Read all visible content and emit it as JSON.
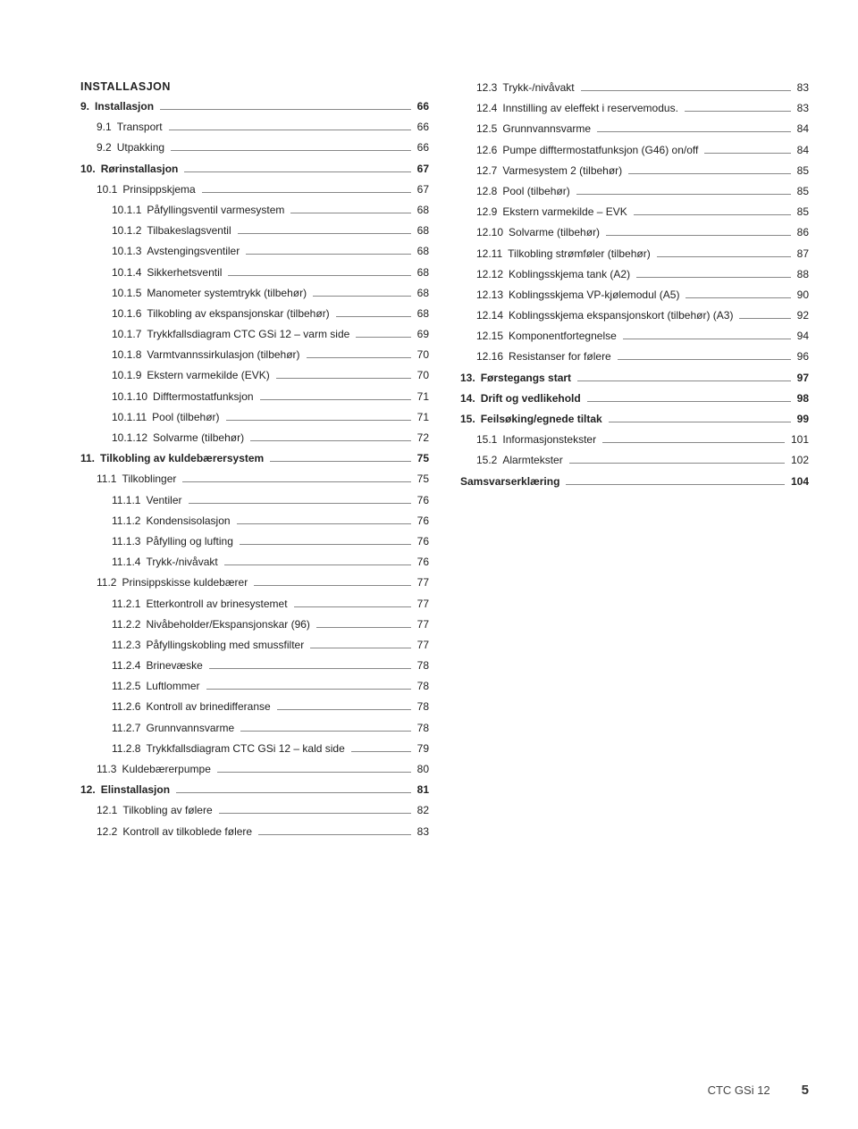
{
  "footer": {
    "doc": "CTC GSi 12",
    "page": "5"
  },
  "left": [
    {
      "type": "heading",
      "label": "INSTALLASJON"
    },
    {
      "num": "9.",
      "label": "Installasjon",
      "page": "66",
      "bold": true
    },
    {
      "num": "9.1",
      "label": "Transport",
      "page": "66",
      "indent": 1
    },
    {
      "num": "9.2",
      "label": "Utpakking",
      "page": "66",
      "indent": 1
    },
    {
      "num": "10.",
      "label": "Rørinstallasjon",
      "page": "67",
      "bold": true
    },
    {
      "num": "10.1",
      "label": "Prinsippskjema",
      "page": "67",
      "indent": 1
    },
    {
      "num": "10.1.1",
      "label": "Påfyllingsventil varmesystem",
      "page": "68",
      "indent": 2
    },
    {
      "num": "10.1.2",
      "label": "Tilbakeslagsventil",
      "page": "68",
      "indent": 2
    },
    {
      "num": "10.1.3",
      "label": "Avstengingsventiler",
      "page": "68",
      "indent": 2
    },
    {
      "num": "10.1.4",
      "label": "Sikkerhetsventil",
      "page": "68",
      "indent": 2
    },
    {
      "num": "10.1.5",
      "label": "Manometer systemtrykk  (tilbehør)",
      "page": "68",
      "indent": 2
    },
    {
      "num": "10.1.6",
      "label": "Tilkobling av ekspansjonskar (tilbehør)",
      "page": "68",
      "indent": 2
    },
    {
      "num": "10.1.7",
      "label": "Trykkfallsdiagram CTC GSi 12 – varm side",
      "page": "69",
      "indent": 2
    },
    {
      "num": "10.1.8",
      "label": "Varmtvannssirkulasjon (tilbehør)",
      "page": "70",
      "indent": 2
    },
    {
      "num": "10.1.9",
      "label": "Ekstern varmekilde (EVK)",
      "page": "70",
      "indent": 2
    },
    {
      "num": "10.1.10",
      "label": "Difftermostatfunksjon",
      "page": "71",
      "indent": 2
    },
    {
      "num": "10.1.11",
      "label": "Pool (tilbehør)",
      "page": "71",
      "indent": 2
    },
    {
      "num": "10.1.12",
      "label": "Solvarme (tilbehør)",
      "page": "72",
      "indent": 2
    },
    {
      "num": "11.",
      "label": "Tilkobling av kuldebærersystem",
      "page": "75",
      "bold": true
    },
    {
      "num": "11.1",
      "label": "Tilkoblinger",
      "page": "75",
      "indent": 1
    },
    {
      "num": "11.1.1",
      "label": "Ventiler",
      "page": "76",
      "indent": 2
    },
    {
      "num": "11.1.2",
      "label": "Kondensisolasjon",
      "page": "76",
      "indent": 2
    },
    {
      "num": "11.1.3",
      "label": "Påfylling og lufting",
      "page": "76",
      "indent": 2
    },
    {
      "num": "11.1.4",
      "label": "Trykk-/nivåvakt",
      "page": "76",
      "indent": 2
    },
    {
      "num": "11.2",
      "label": "Prinsippskisse kuldebærer",
      "page": "77",
      "indent": 1
    },
    {
      "num": "11.2.1",
      "label": "Etterkontroll av brinesystemet",
      "page": "77",
      "indent": 2
    },
    {
      "num": "11.2.2",
      "label": "Nivåbeholder/Ekspansjonskar (96)",
      "page": "77",
      "indent": 2
    },
    {
      "num": "11.2.3",
      "label": "Påfyllingskobling med smussfilter",
      "page": "77",
      "indent": 2
    },
    {
      "num": "11.2.4",
      "label": "Brinevæske",
      "page": "78",
      "indent": 2
    },
    {
      "num": "11.2.5",
      "label": "Luftlommer",
      "page": "78",
      "indent": 2
    },
    {
      "num": "11.2.6",
      "label": "Kontroll av brinedifferanse",
      "page": "78",
      "indent": 2
    },
    {
      "num": "11.2.7",
      "label": "Grunnvannsvarme",
      "page": "78",
      "indent": 2
    },
    {
      "num": "11.2.8",
      "label": "Trykkfallsdiagram CTC GSi 12 – kald side",
      "page": "79",
      "indent": 2
    },
    {
      "num": "11.3",
      "label": "Kuldebærerpumpe",
      "page": "80",
      "indent": 1
    },
    {
      "num": "12.",
      "label": "Elinstallasjon",
      "page": "81",
      "bold": true
    },
    {
      "num": "12.1",
      "label": "Tilkobling av følere",
      "page": "82",
      "indent": 1
    },
    {
      "num": "12.2",
      "label": "Kontroll av tilkoblede følere",
      "page": "83",
      "indent": 1
    }
  ],
  "right": [
    {
      "num": "12.3",
      "label": "Trykk-/nivåvakt",
      "page": "83",
      "indent": 1
    },
    {
      "num": "12.4",
      "label": "Innstilling av eleffekt i reservemodus.",
      "page": "83",
      "indent": 1
    },
    {
      "num": "12.5",
      "label": "Grunnvannsvarme",
      "page": "84",
      "indent": 1
    },
    {
      "num": "12.6",
      "label": "Pumpe difftermostatfunksjon (G46) on/off",
      "page": "84",
      "indent": 1
    },
    {
      "num": "12.7",
      "label": "Varmesystem 2 (tilbehør)",
      "page": "85",
      "indent": 1
    },
    {
      "num": "12.8",
      "label": "Pool (tilbehør)",
      "page": "85",
      "indent": 1
    },
    {
      "num": "12.9",
      "label": "Ekstern varmekilde – EVK",
      "page": "85",
      "indent": 1
    },
    {
      "num": "12.10",
      "label": "Solvarme (tilbehør)",
      "page": "86",
      "indent": 1
    },
    {
      "num": "12.11",
      "label": "Tilkobling strømføler (tilbehør)",
      "page": "87",
      "indent": 1
    },
    {
      "num": "12.12",
      "label": "Koblingsskjema tank (A2)",
      "page": "88",
      "indent": 1
    },
    {
      "num": "12.13",
      "label": "Koblingsskjema VP-kjølemodul (A5)",
      "page": "90",
      "indent": 1
    },
    {
      "num": "12.14",
      "label": "Koblingsskjema ekspansjonskort (tilbehør) (A3)",
      "page": "92",
      "indent": 1
    },
    {
      "num": "12.15",
      "label": "Komponentfortegnelse",
      "page": "94",
      "indent": 1
    },
    {
      "num": "12.16",
      "label": "Resistanser for følere",
      "page": "96",
      "indent": 1
    },
    {
      "num": "13.",
      "label": "Førstegangs start",
      "page": "97",
      "bold": true
    },
    {
      "num": "14.",
      "label": "Drift og vedlikehold",
      "page": "98",
      "bold": true
    },
    {
      "num": "15.",
      "label": "Feilsøking/egnede tiltak",
      "page": "99",
      "bold": true
    },
    {
      "num": "15.1",
      "label": "Informasjonstekster",
      "page": "101",
      "indent": 1
    },
    {
      "num": "15.2",
      "label": "Alarmtekster",
      "page": "102",
      "indent": 1
    },
    {
      "num": "",
      "label": "Samsvarserklæring",
      "page": "104",
      "bold": true,
      "nonum": true
    }
  ]
}
